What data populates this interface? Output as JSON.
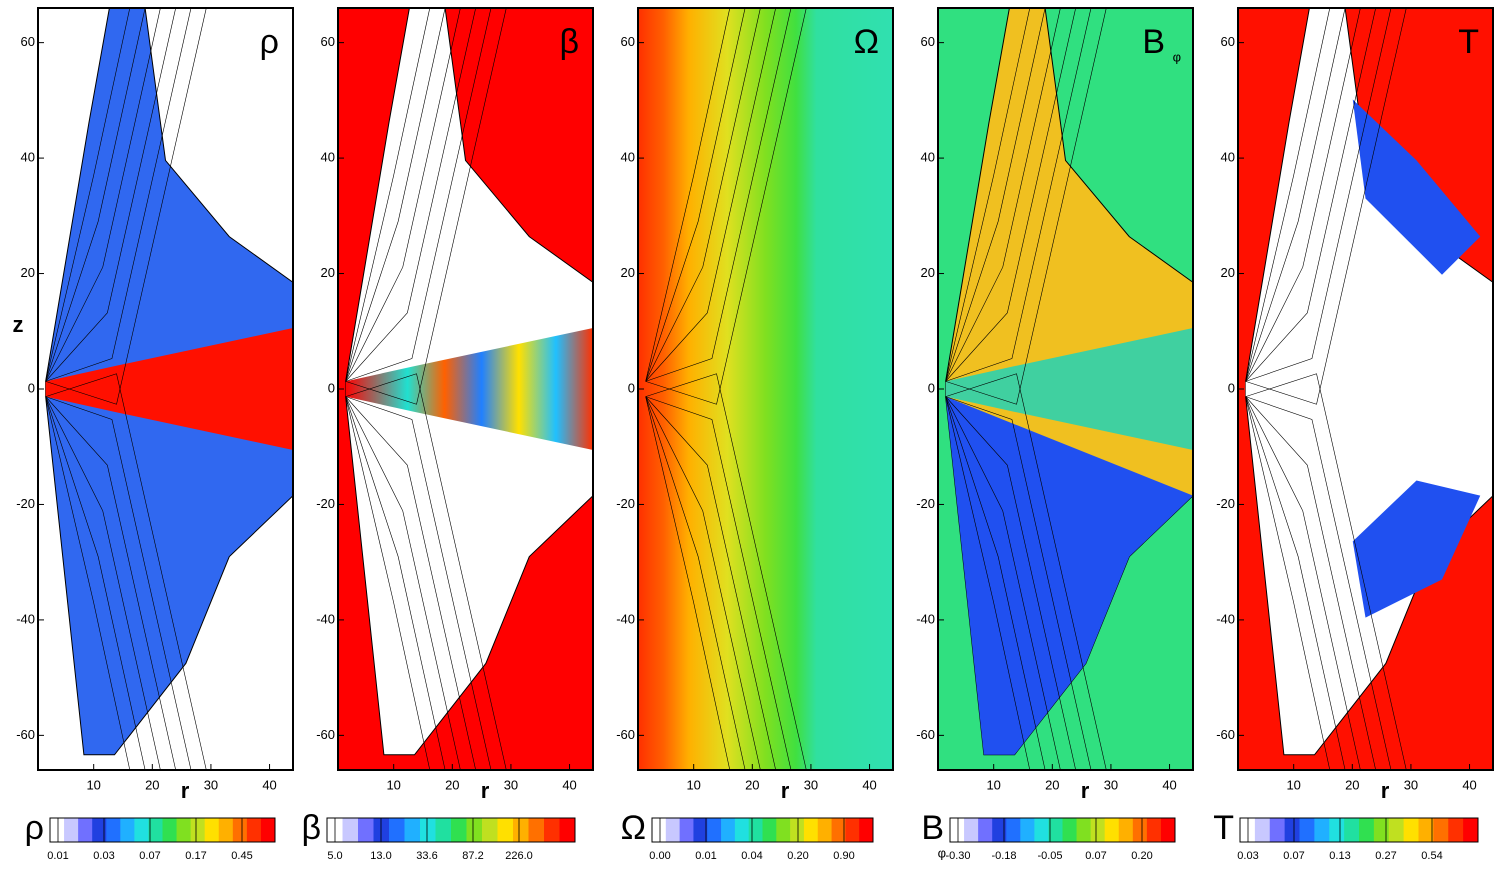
{
  "chart_data": [
    {
      "type": "contour",
      "label": "ρ",
      "xlabel": "r",
      "ylabel": "z",
      "xlim": [
        0.5,
        44
      ],
      "ylim": [
        -66,
        66
      ],
      "xticks": [
        10,
        20,
        30,
        40
      ],
      "yticks": [
        -60,
        -40,
        -20,
        0,
        20,
        40,
        60
      ],
      "colorbar": {
        "label": "ρ",
        "ticks": [
          0.01,
          0.03,
          0.07,
          0.17,
          0.45
        ]
      }
    },
    {
      "type": "contour",
      "label": "β",
      "xlabel": "r",
      "xlim": [
        0.5,
        44
      ],
      "ylim": [
        -66,
        66
      ],
      "xticks": [
        10,
        20,
        30,
        40
      ],
      "yticks": [
        -60,
        -40,
        -20,
        0,
        20,
        40,
        60
      ],
      "colorbar": {
        "label": "β",
        "ticks": [
          {
            "value": 5,
            "label": "5.0"
          },
          {
            "value": 13,
            "label": "13.0"
          },
          33.6,
          87.2,
          {
            "value": 226,
            "label": "226.0"
          }
        ]
      }
    },
    {
      "type": "contour",
      "label": "Ω",
      "xlabel": "r",
      "xlim": [
        0.5,
        44
      ],
      "ylim": [
        -66,
        66
      ],
      "xticks": [
        10,
        20,
        30,
        40
      ],
      "yticks": [
        -60,
        -40,
        -20,
        0,
        20,
        40,
        60
      ],
      "colorbar": {
        "label": "Ω",
        "ticks": [
          {
            "value": 0,
            "label": "0.00"
          },
          0.01,
          0.04,
          {
            "value": 0.2,
            "label": "0.20"
          },
          {
            "value": 0.9,
            "label": "0.90"
          }
        ]
      }
    },
    {
      "type": "contour",
      "label": "B",
      "label_sub": "φ",
      "xlabel": "r",
      "xlim": [
        0.5,
        44
      ],
      "ylim": [
        -66,
        66
      ],
      "xticks": [
        10,
        20,
        30,
        40
      ],
      "yticks": [
        -60,
        -40,
        -20,
        0,
        20,
        40,
        60
      ],
      "colorbar": {
        "label": "B",
        "label_sub": "φ",
        "ticks": [
          {
            "value": -0.3,
            "label": "-0.30"
          },
          -0.18,
          -0.05,
          0.07,
          {
            "value": 0.2,
            "label": "0.20"
          }
        ]
      }
    },
    {
      "type": "contour",
      "label": "T",
      "xlabel": "r",
      "xlim": [
        0.5,
        44
      ],
      "ylim": [
        -66,
        66
      ],
      "xticks": [
        10,
        20,
        30,
        40
      ],
      "yticks": [
        -60,
        -40,
        -20,
        0,
        20,
        40,
        60
      ],
      "colorbar": {
        "label": "T",
        "ticks": [
          0.03,
          0.07,
          0.13,
          0.27,
          0.54
        ]
      }
    }
  ]
}
